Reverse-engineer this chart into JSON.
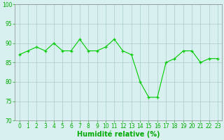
{
  "x": [
    0,
    1,
    2,
    3,
    4,
    5,
    6,
    7,
    8,
    9,
    10,
    11,
    12,
    13,
    14,
    15,
    16,
    17,
    18,
    19,
    20,
    21,
    22,
    23
  ],
  "y": [
    87,
    88,
    89,
    88,
    90,
    88,
    88,
    91,
    88,
    88,
    89,
    91,
    88,
    87,
    80,
    76,
    76,
    85,
    86,
    88,
    88,
    85,
    86,
    86
  ],
  "line_color": "#00cc00",
  "marker_color": "#00cc00",
  "bg_color": "#d8f0f0",
  "grid_color": "#aacccc",
  "xlabel": "Humidité relative (%)",
  "ylim": [
    70,
    100
  ],
  "xlim_min": -0.5,
  "xlim_max": 23.5,
  "yticks": [
    70,
    75,
    80,
    85,
    90,
    95,
    100
  ],
  "xticks": [
    0,
    1,
    2,
    3,
    4,
    5,
    6,
    7,
    8,
    9,
    10,
    11,
    12,
    13,
    14,
    15,
    16,
    17,
    18,
    19,
    20,
    21,
    22,
    23
  ],
  "xlabel_color": "#00aa00",
  "tick_color": "#00aa00",
  "xlabel_fontsize": 7,
  "tick_fontsize": 5.5,
  "spine_color": "#888888"
}
